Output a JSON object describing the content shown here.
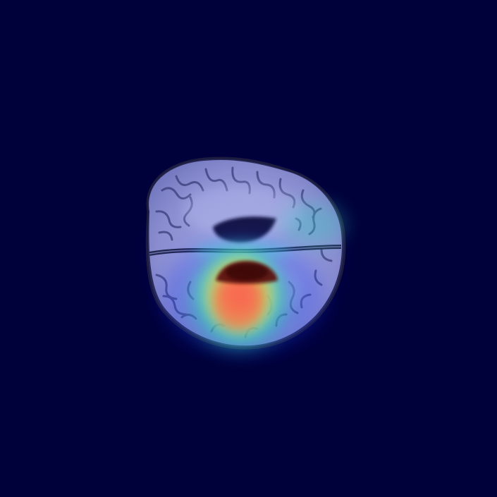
{
  "image": {
    "kind": "brain-mri-axial-with-heatmap-overlay",
    "background_color": "#00003a",
    "brain_tissue_color": "#8a8fd0",
    "heatmap_colors": {
      "cool": "#1a3cff",
      "mid": "#30e0c0",
      "warm": "#e0e040",
      "hot": "#ff5030",
      "peak": "#a01010"
    }
  }
}
